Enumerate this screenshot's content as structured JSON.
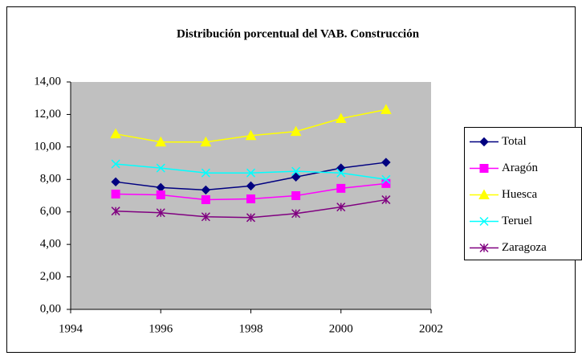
{
  "chart_data": {
    "type": "line",
    "title": "Distribución porcentual del VAB. Construcción",
    "x": [
      1995,
      1996,
      1997,
      1998,
      1999,
      2000,
      2001
    ],
    "series": [
      {
        "name": "Total",
        "color": "#000080",
        "marker": "diamond",
        "values": [
          7.85,
          7.5,
          7.35,
          7.6,
          8.15,
          8.7,
          9.05
        ]
      },
      {
        "name": "Aragón",
        "color": "#ff00ff",
        "marker": "square",
        "values": [
          7.1,
          7.05,
          6.75,
          6.8,
          7.0,
          7.45,
          7.75
        ]
      },
      {
        "name": "Huesca",
        "color": "#ffff00",
        "marker": "triangle",
        "values": [
          10.8,
          10.3,
          10.3,
          10.7,
          10.95,
          11.75,
          12.3
        ]
      },
      {
        "name": "Teruel",
        "color": "#00ffff",
        "marker": "x",
        "values": [
          8.95,
          8.7,
          8.4,
          8.4,
          8.5,
          8.4,
          8.0
        ]
      },
      {
        "name": "Zaragoza",
        "color": "#800080",
        "marker": "asterisk",
        "values": [
          6.05,
          5.95,
          5.7,
          5.65,
          5.9,
          6.3,
          6.75
        ]
      }
    ],
    "xlim": [
      1994,
      2002
    ],
    "xticks": [
      1994,
      1996,
      1998,
      2000,
      2002
    ],
    "ylim": [
      0,
      14
    ],
    "yticks": [
      {
        "value": 0,
        "label": "0,00"
      },
      {
        "value": 2,
        "label": "2,00"
      },
      {
        "value": 4,
        "label": "4,00"
      },
      {
        "value": 6,
        "label": "6,00"
      },
      {
        "value": 8,
        "label": "8,00"
      },
      {
        "value": 10,
        "label": "10,00"
      },
      {
        "value": 12,
        "label": "12,00"
      },
      {
        "value": 14,
        "label": "14,00"
      }
    ],
    "grid": false,
    "legend": "right",
    "plot_background": "#c0c0c0"
  }
}
